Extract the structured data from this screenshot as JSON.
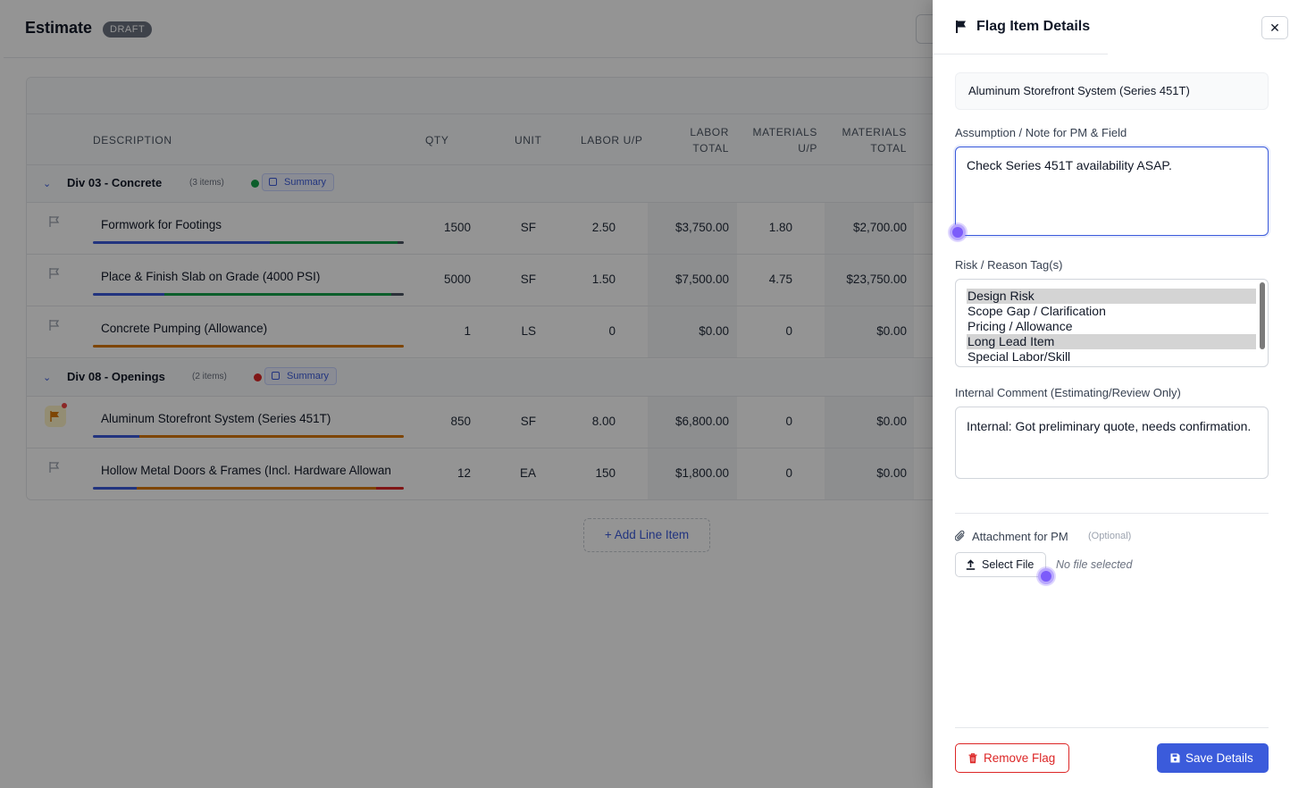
{
  "page": {
    "title": "Estimate",
    "badge": "DRAFT",
    "add_line_item": "+ Add Line Item"
  },
  "table": {
    "columns": {
      "description": "DESCRIPTION",
      "qty": "QTY",
      "unit": "UNIT",
      "labor_up": "LABOR U/P",
      "labor_total_1": "LABOR",
      "labor_total_2": "TOTAL",
      "materials_up_1": "MATERIALS",
      "materials_up_2": "U/P",
      "materials_total_1": "MATERIALS",
      "materials_total_2": "TOTAL"
    },
    "groups": [
      {
        "name": "Div 03 - Concrete",
        "count": "(3 items)",
        "status_color": "#16a34a",
        "summary_label": "Summary",
        "rows": [
          {
            "description": "Formwork for Footings",
            "qty": "1500",
            "unit": "SF",
            "labor_up": "2.50",
            "labor_total": "$3,750.00",
            "materials_up": "1.80",
            "materials_total": "$2,700.00",
            "flagged": false
          },
          {
            "description": "Place & Finish Slab on Grade (4000 PSI)",
            "qty": "5000",
            "unit": "SF",
            "labor_up": "1.50",
            "labor_total": "$7,500.00",
            "materials_up": "4.75",
            "materials_total": "$23,750.00",
            "flagged": false
          },
          {
            "description": "Concrete Pumping (Allowance)",
            "qty": "1",
            "unit": "LS",
            "labor_up": "0",
            "labor_total": "$0.00",
            "materials_up": "0",
            "materials_total": "$0.00",
            "flagged": false
          }
        ]
      },
      {
        "name": "Div 08 - Openings",
        "count": "(2 items)",
        "status_color": "#dc2626",
        "summary_label": "Summary",
        "rows": [
          {
            "description": "Aluminum Storefront System (Series 451T)",
            "qty": "850",
            "unit": "SF",
            "labor_up": "8.00",
            "labor_total": "$6,800.00",
            "materials_up": "0",
            "materials_total": "$0.00",
            "flagged": true
          },
          {
            "description": "Hollow Metal Doors & Frames (Incl. Hardware Allowan",
            "qty": "12",
            "unit": "EA",
            "labor_up": "150",
            "labor_total": "$1,800.00",
            "materials_up": "0",
            "materials_total": "$0.00",
            "flagged": false
          }
        ]
      }
    ]
  },
  "drawer": {
    "title": "Flag Item Details",
    "close_label": "✕",
    "item_name": "Aluminum Storefront System (Series 451T)",
    "note_label": "Assumption / Note for PM & Field",
    "note_value": "Check Series 451T availability ASAP.",
    "tags_label": "Risk / Reason Tag(s)",
    "tags": [
      {
        "label": "Design Risk",
        "selected": true
      },
      {
        "label": "Scope Gap / Clarification",
        "selected": false
      },
      {
        "label": "Pricing / Allowance",
        "selected": false
      },
      {
        "label": "Long Lead Item",
        "selected": true
      },
      {
        "label": "Special Labor/Skill",
        "selected": false
      }
    ],
    "comment_label": "Internal Comment (Estimating/Review Only)",
    "comment_value": "Internal: Got preliminary quote, needs confirmation.",
    "attachment_label": "Attachment for PM",
    "attachment_optional": "(Optional)",
    "select_file_label": "Select File",
    "no_file_label": "No file selected",
    "remove_label": "Remove Flag",
    "save_label": "Save Details"
  },
  "colors": {
    "accent": "#3b5bdb",
    "danger": "#dc2626",
    "flag_active": "#d97706"
  }
}
